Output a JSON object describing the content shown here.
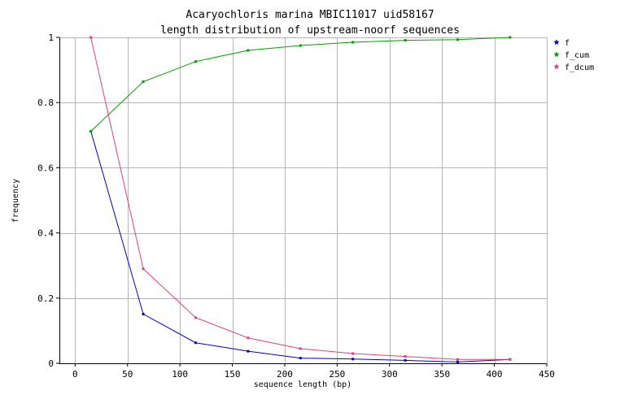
{
  "chart_data": {
    "type": "line",
    "title": "Acaryochloris marina MBIC11017 uid58167",
    "subtitle": "length distribution of upstream-noorf sequences",
    "xlabel": "sequence length (bp)",
    "ylabel": "frequency",
    "xlim": [
      -15,
      450
    ],
    "ylim": [
      0,
      1
    ],
    "xticks": [
      0,
      50,
      100,
      150,
      200,
      250,
      300,
      350,
      400,
      450
    ],
    "yticks": [
      0,
      0.2,
      0.4,
      0.6,
      0.8,
      1
    ],
    "ytick_labels": [
      "0",
      "0.2",
      "0.4",
      "0.6",
      "0.8",
      "1"
    ],
    "grid": true,
    "legend_position": "right",
    "x": [
      15,
      65,
      115,
      165,
      215,
      265,
      315,
      365,
      415
    ],
    "series": [
      {
        "name": "f",
        "color": "#0000cc",
        "values": [
          0.712,
          0.151,
          0.063,
          0.037,
          0.016,
          0.013,
          0.009,
          0.004,
          0.012
        ]
      },
      {
        "name": "f_cum",
        "color": "#00a000",
        "values": [
          0.712,
          0.864,
          0.926,
          0.96,
          0.975,
          0.985,
          0.991,
          0.993,
          1.0
        ]
      },
      {
        "name": "f_dcum",
        "color": "#e0407a",
        "values": [
          1.0,
          0.29,
          0.14,
          0.078,
          0.045,
          0.03,
          0.021,
          0.012,
          0.012
        ]
      }
    ]
  }
}
